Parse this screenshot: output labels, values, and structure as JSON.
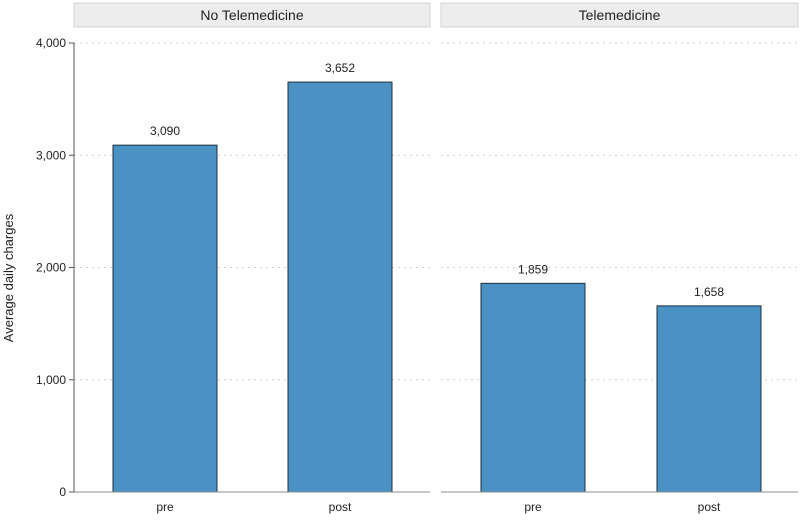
{
  "chart_data": {
    "type": "bar",
    "ylabel": "Average daily charges",
    "ylim": [
      0,
      4000
    ],
    "yticks": [
      0,
      1000,
      2000,
      3000,
      4000
    ],
    "ytick_labels": [
      "0",
      "1,000",
      "2,000",
      "3,000",
      "4,000"
    ],
    "grid": true,
    "colors": {
      "bar": "#4a91c4",
      "bar_outline": "#1f2f3f",
      "panel_header": "#ededed"
    },
    "panels": [
      {
        "title": "No Telemedicine",
        "categories": [
          "pre",
          "post"
        ],
        "values": [
          3090,
          3652
        ],
        "value_labels": [
          "3,090",
          "3,652"
        ]
      },
      {
        "title": "Telemedicine",
        "categories": [
          "pre",
          "post"
        ],
        "values": [
          1859,
          1658
        ],
        "value_labels": [
          "1,859",
          "1,658"
        ]
      }
    ]
  }
}
